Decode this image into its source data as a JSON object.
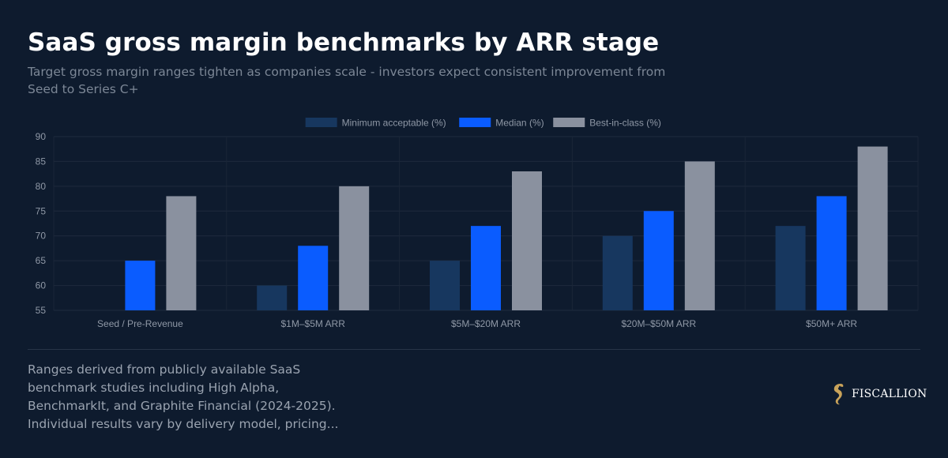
{
  "header": {
    "title": "SaaS gross margin benchmarks by ARR stage",
    "subtitle": "Target gross margin ranges tighten as companies scale - investors expect consistent improvement from Seed to Series C+"
  },
  "chart_data": {
    "type": "bar",
    "categories": [
      "Seed / Pre-Revenue",
      "$1M–$5M ARR",
      "$5M–$20M ARR",
      "$20M–$50M ARR",
      "$50M+ ARR"
    ],
    "series": [
      {
        "name": "Minimum acceptable (%)",
        "color": "#17375f",
        "values": [
          55,
          60,
          65,
          70,
          72
        ]
      },
      {
        "name": "Median (%)",
        "color": "#0a5cff",
        "values": [
          65,
          68,
          72,
          75,
          78
        ]
      },
      {
        "name": "Best-in-class (%)",
        "color": "#8a919f",
        "values": [
          78,
          80,
          83,
          85,
          88
        ]
      }
    ],
    "ylim": [
      55,
      90
    ],
    "yticks": [
      55,
      60,
      65,
      70,
      75,
      80,
      85,
      90
    ],
    "grid": true,
    "legend_position": "top-center",
    "xlabel": "",
    "ylabel": ""
  },
  "footer": {
    "note": "Ranges derived from publicly available SaaS benchmark studies including High Alpha, BenchmarkIt, and Graphite Financial (2024-2025). Individual results vary by delivery model, pricing...",
    "brand": "FISCALLION",
    "logo_icon": "seahorse-logo-icon",
    "logo_color": "#c9a35a"
  }
}
